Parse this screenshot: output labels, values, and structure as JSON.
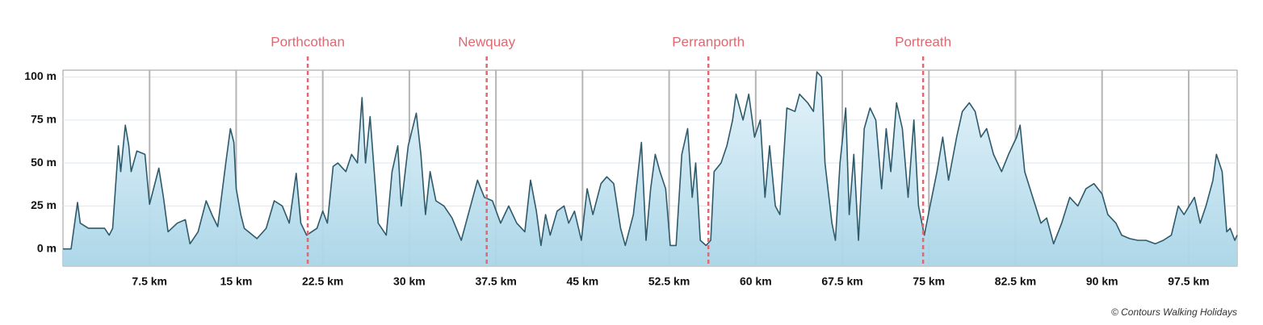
{
  "chart_data": {
    "type": "area",
    "credit": "© Contours Walking Holidays",
    "x": [
      0,
      0.7,
      1.26,
      1.5,
      2.2,
      3.6,
      4.0,
      4.3,
      4.8,
      5.0,
      5.4,
      5.7,
      5.9,
      6.4,
      7.1,
      7.5,
      8.3,
      8.7,
      9.1,
      9.9,
      10.6,
      11.0,
      11.7,
      12.4,
      12.9,
      13.4,
      14.1,
      14.5,
      14.8,
      15.0,
      15.4,
      15.7,
      16.8,
      17.6,
      18.3,
      19.0,
      19.6,
      20.2,
      20.6,
      21.1,
      22.0,
      22.5,
      22.9,
      23.4,
      23.8,
      24.5,
      25.0,
      25.5,
      25.9,
      26.2,
      26.6,
      26.9,
      27.3,
      28.0,
      28.5,
      29.0,
      29.3,
      29.9,
      30.6,
      31.0,
      31.4,
      31.8,
      32.3,
      33.0,
      33.7,
      34.5,
      35.1,
      35.9,
      36.5,
      37.2,
      37.9,
      38.6,
      39.3,
      40.0,
      40.5,
      41.0,
      41.4,
      41.8,
      42.2,
      42.8,
      43.4,
      43.8,
      44.3,
      44.9,
      45.4,
      45.9,
      46.6,
      47.1,
      47.7,
      48.3,
      48.7,
      49.4,
      50.1,
      50.5,
      50.9,
      51.3,
      51.7,
      52.2,
      52.6,
      53.1,
      53.6,
      54.1,
      54.5,
      54.8,
      55.2,
      55.7,
      56.1,
      56.4,
      57.0,
      57.5,
      58.0,
      58.3,
      58.9,
      59.4,
      59.9,
      60.4,
      60.8,
      61.2,
      61.7,
      62.1,
      62.7,
      63.4,
      63.8,
      64.5,
      65.0,
      65.3,
      65.7,
      66.0,
      66.6,
      66.9,
      67.3,
      67.8,
      68.1,
      68.5,
      68.9,
      69.4,
      69.9,
      70.4,
      70.9,
      71.3,
      71.7,
      72.2,
      72.7,
      73.2,
      73.7,
      74.1,
      74.6,
      75.1,
      75.7,
      76.2,
      76.7,
      77.4,
      77.9,
      78.5,
      79.0,
      79.5,
      80.0,
      80.6,
      81.3,
      81.9,
      82.6,
      82.9,
      83.3,
      84.0,
      84.7,
      85.2,
      85.8,
      86.5,
      87.2,
      87.9,
      88.6,
      89.3,
      90.0,
      90.5,
      91.2,
      91.7,
      92.4,
      93.1,
      93.8,
      94.6,
      95.3,
      96.0,
      96.6,
      97.1,
      98.0,
      98.5,
      99.0,
      99.6,
      99.9,
      100.4,
      100.8,
      101.1,
      101.5,
      101.7
    ],
    "series": [
      {
        "color": "#2e5a6b",
        "values": [
          0,
          0,
          27,
          15,
          12,
          12,
          8,
          12,
          60,
          45,
          72,
          60,
          45,
          57,
          55,
          26,
          47,
          30,
          10,
          15,
          17,
          3,
          10,
          28,
          20,
          13,
          50,
          70,
          62,
          35,
          20,
          12,
          6,
          12,
          28,
          25,
          15,
          44,
          15,
          8,
          12,
          22,
          15,
          48,
          50,
          45,
          55,
          50,
          88,
          50,
          77,
          50,
          15,
          8,
          45,
          60,
          25,
          60,
          79,
          55,
          20,
          45,
          28,
          25,
          18,
          5,
          20,
          40,
          30,
          28,
          15,
          25,
          15,
          10,
          40,
          22,
          2,
          20,
          8,
          22,
          25,
          15,
          22,
          5,
          35,
          20,
          38,
          42,
          38,
          12,
          2,
          20,
          62,
          5,
          35,
          55,
          45,
          35,
          2,
          2,
          55,
          70,
          30,
          50,
          5,
          2,
          5,
          45,
          50,
          60,
          75,
          90,
          75,
          90,
          65,
          75,
          30,
          60,
          25,
          20,
          82,
          80,
          90,
          85,
          80,
          103,
          100,
          50,
          15,
          5,
          50,
          82,
          20,
          55,
          5,
          70,
          82,
          75,
          35,
          70,
          45,
          85,
          70,
          30,
          75,
          25,
          8,
          25,
          45,
          65,
          40,
          65,
          80,
          85,
          80,
          65,
          70,
          55,
          45,
          55,
          65,
          72,
          45,
          30,
          15,
          18,
          3,
          15,
          30,
          25,
          35,
          38,
          32,
          20,
          15,
          8,
          6,
          5,
          5,
          3,
          5,
          8,
          25,
          20,
          30,
          15,
          25,
          40,
          55,
          45,
          10,
          12,
          5,
          8
        ]
      }
    ],
    "xlim": [
      0,
      101.7
    ],
    "ylim": [
      -10,
      104
    ],
    "xticks": [
      {
        "value": 7.5,
        "label": "7.5 km"
      },
      {
        "value": 15,
        "label": "15 km"
      },
      {
        "value": 22.5,
        "label": "22.5 km"
      },
      {
        "value": 30,
        "label": "30 km"
      },
      {
        "value": 37.5,
        "label": "37.5 km"
      },
      {
        "value": 45,
        "label": "45 km"
      },
      {
        "value": 52.5,
        "label": "52.5 km"
      },
      {
        "value": 60,
        "label": "60 km"
      },
      {
        "value": 67.5,
        "label": "67.5 km"
      },
      {
        "value": 75,
        "label": "75 km"
      },
      {
        "value": 82.5,
        "label": "82.5 km"
      },
      {
        "value": 90,
        "label": "90 km"
      },
      {
        "value": 97.5,
        "label": "97.5 km"
      }
    ],
    "yticks": [
      {
        "value": 0,
        "label": "0 m"
      },
      {
        "value": 25,
        "label": "25 m"
      },
      {
        "value": 50,
        "label": "50 m"
      },
      {
        "value": 75,
        "label": "75 m"
      },
      {
        "value": 100,
        "label": "100 m"
      }
    ],
    "grid": true,
    "annotations": [
      {
        "label": "Porthcothan",
        "x": 21.2
      },
      {
        "label": "Newquay",
        "x": 36.7
      },
      {
        "label": "Perranporth",
        "x": 55.9
      },
      {
        "label": "Portreath",
        "x": 74.5
      }
    ],
    "annotation_color": "#e06870"
  }
}
